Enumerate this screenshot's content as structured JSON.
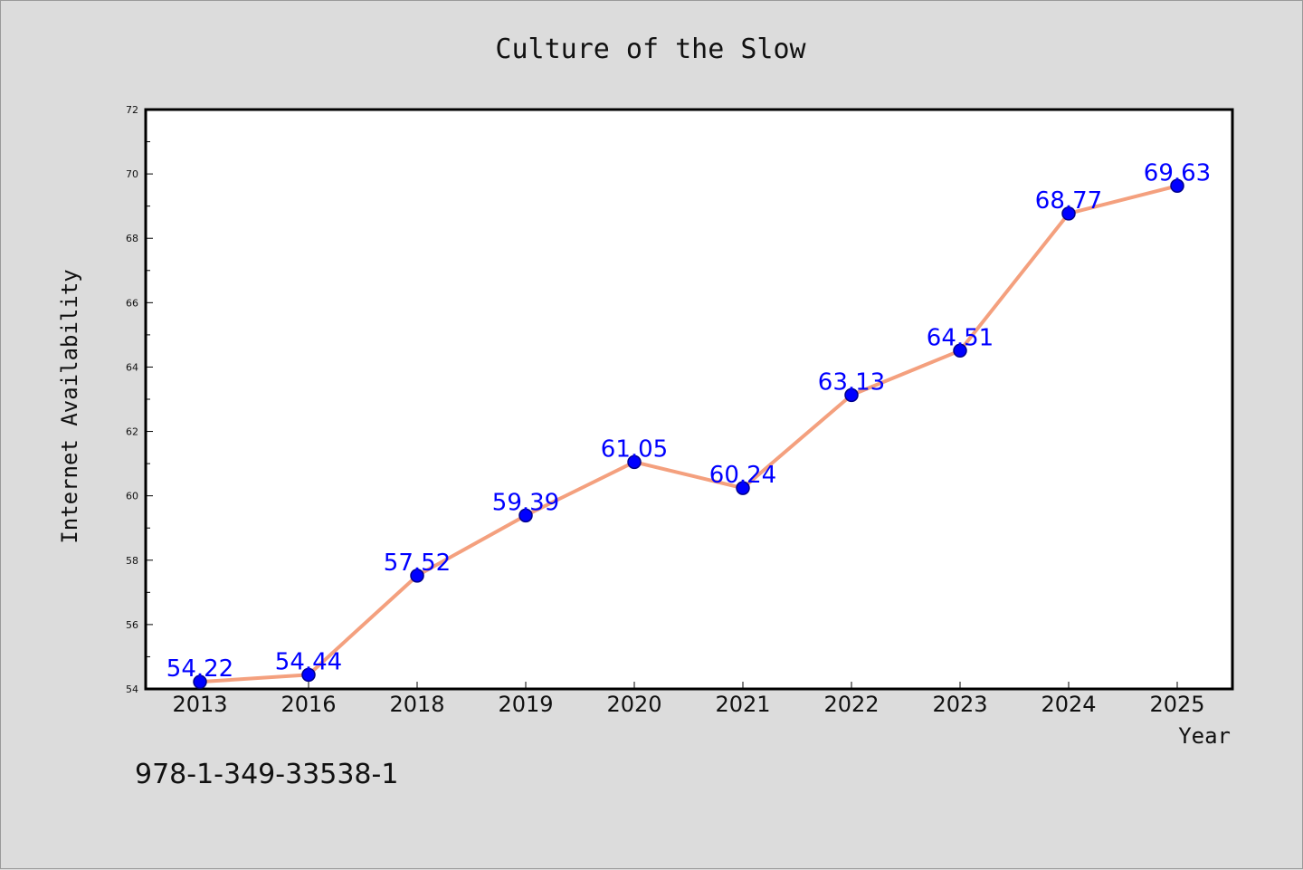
{
  "chart_data": {
    "type": "line",
    "title": "Culture of the Slow",
    "xlabel": "Year",
    "ylabel": "Internet Availability",
    "categories": [
      "2013",
      "2016",
      "2018",
      "2019",
      "2020",
      "2021",
      "2022",
      "2023",
      "2024",
      "2025"
    ],
    "series": [
      {
        "values": [
          54.22,
          54.44,
          57.52,
          59.39,
          61.05,
          60.24,
          63.13,
          64.51,
          68.77,
          69.63
        ],
        "data_labels": [
          "54.22",
          "54.44",
          "57.52",
          "59.39",
          "61.05",
          "60.24",
          "63.13",
          "64.51",
          "68.77",
          "69.63"
        ]
      }
    ],
    "ylim": [
      54,
      72
    ],
    "yticks": [
      54,
      56,
      58,
      60,
      62,
      64,
      66,
      68,
      70,
      72
    ],
    "grid": false,
    "legend": "none",
    "colors": {
      "line": "#f4a07e",
      "marker_fill": "#0000ff",
      "marker_edge": "#00008b",
      "data_label": "#0000ff",
      "background": "#dcdcdc",
      "plot_background": "#ffffff"
    }
  },
  "footer": {
    "identifier": "978-1-349-33538-1"
  }
}
